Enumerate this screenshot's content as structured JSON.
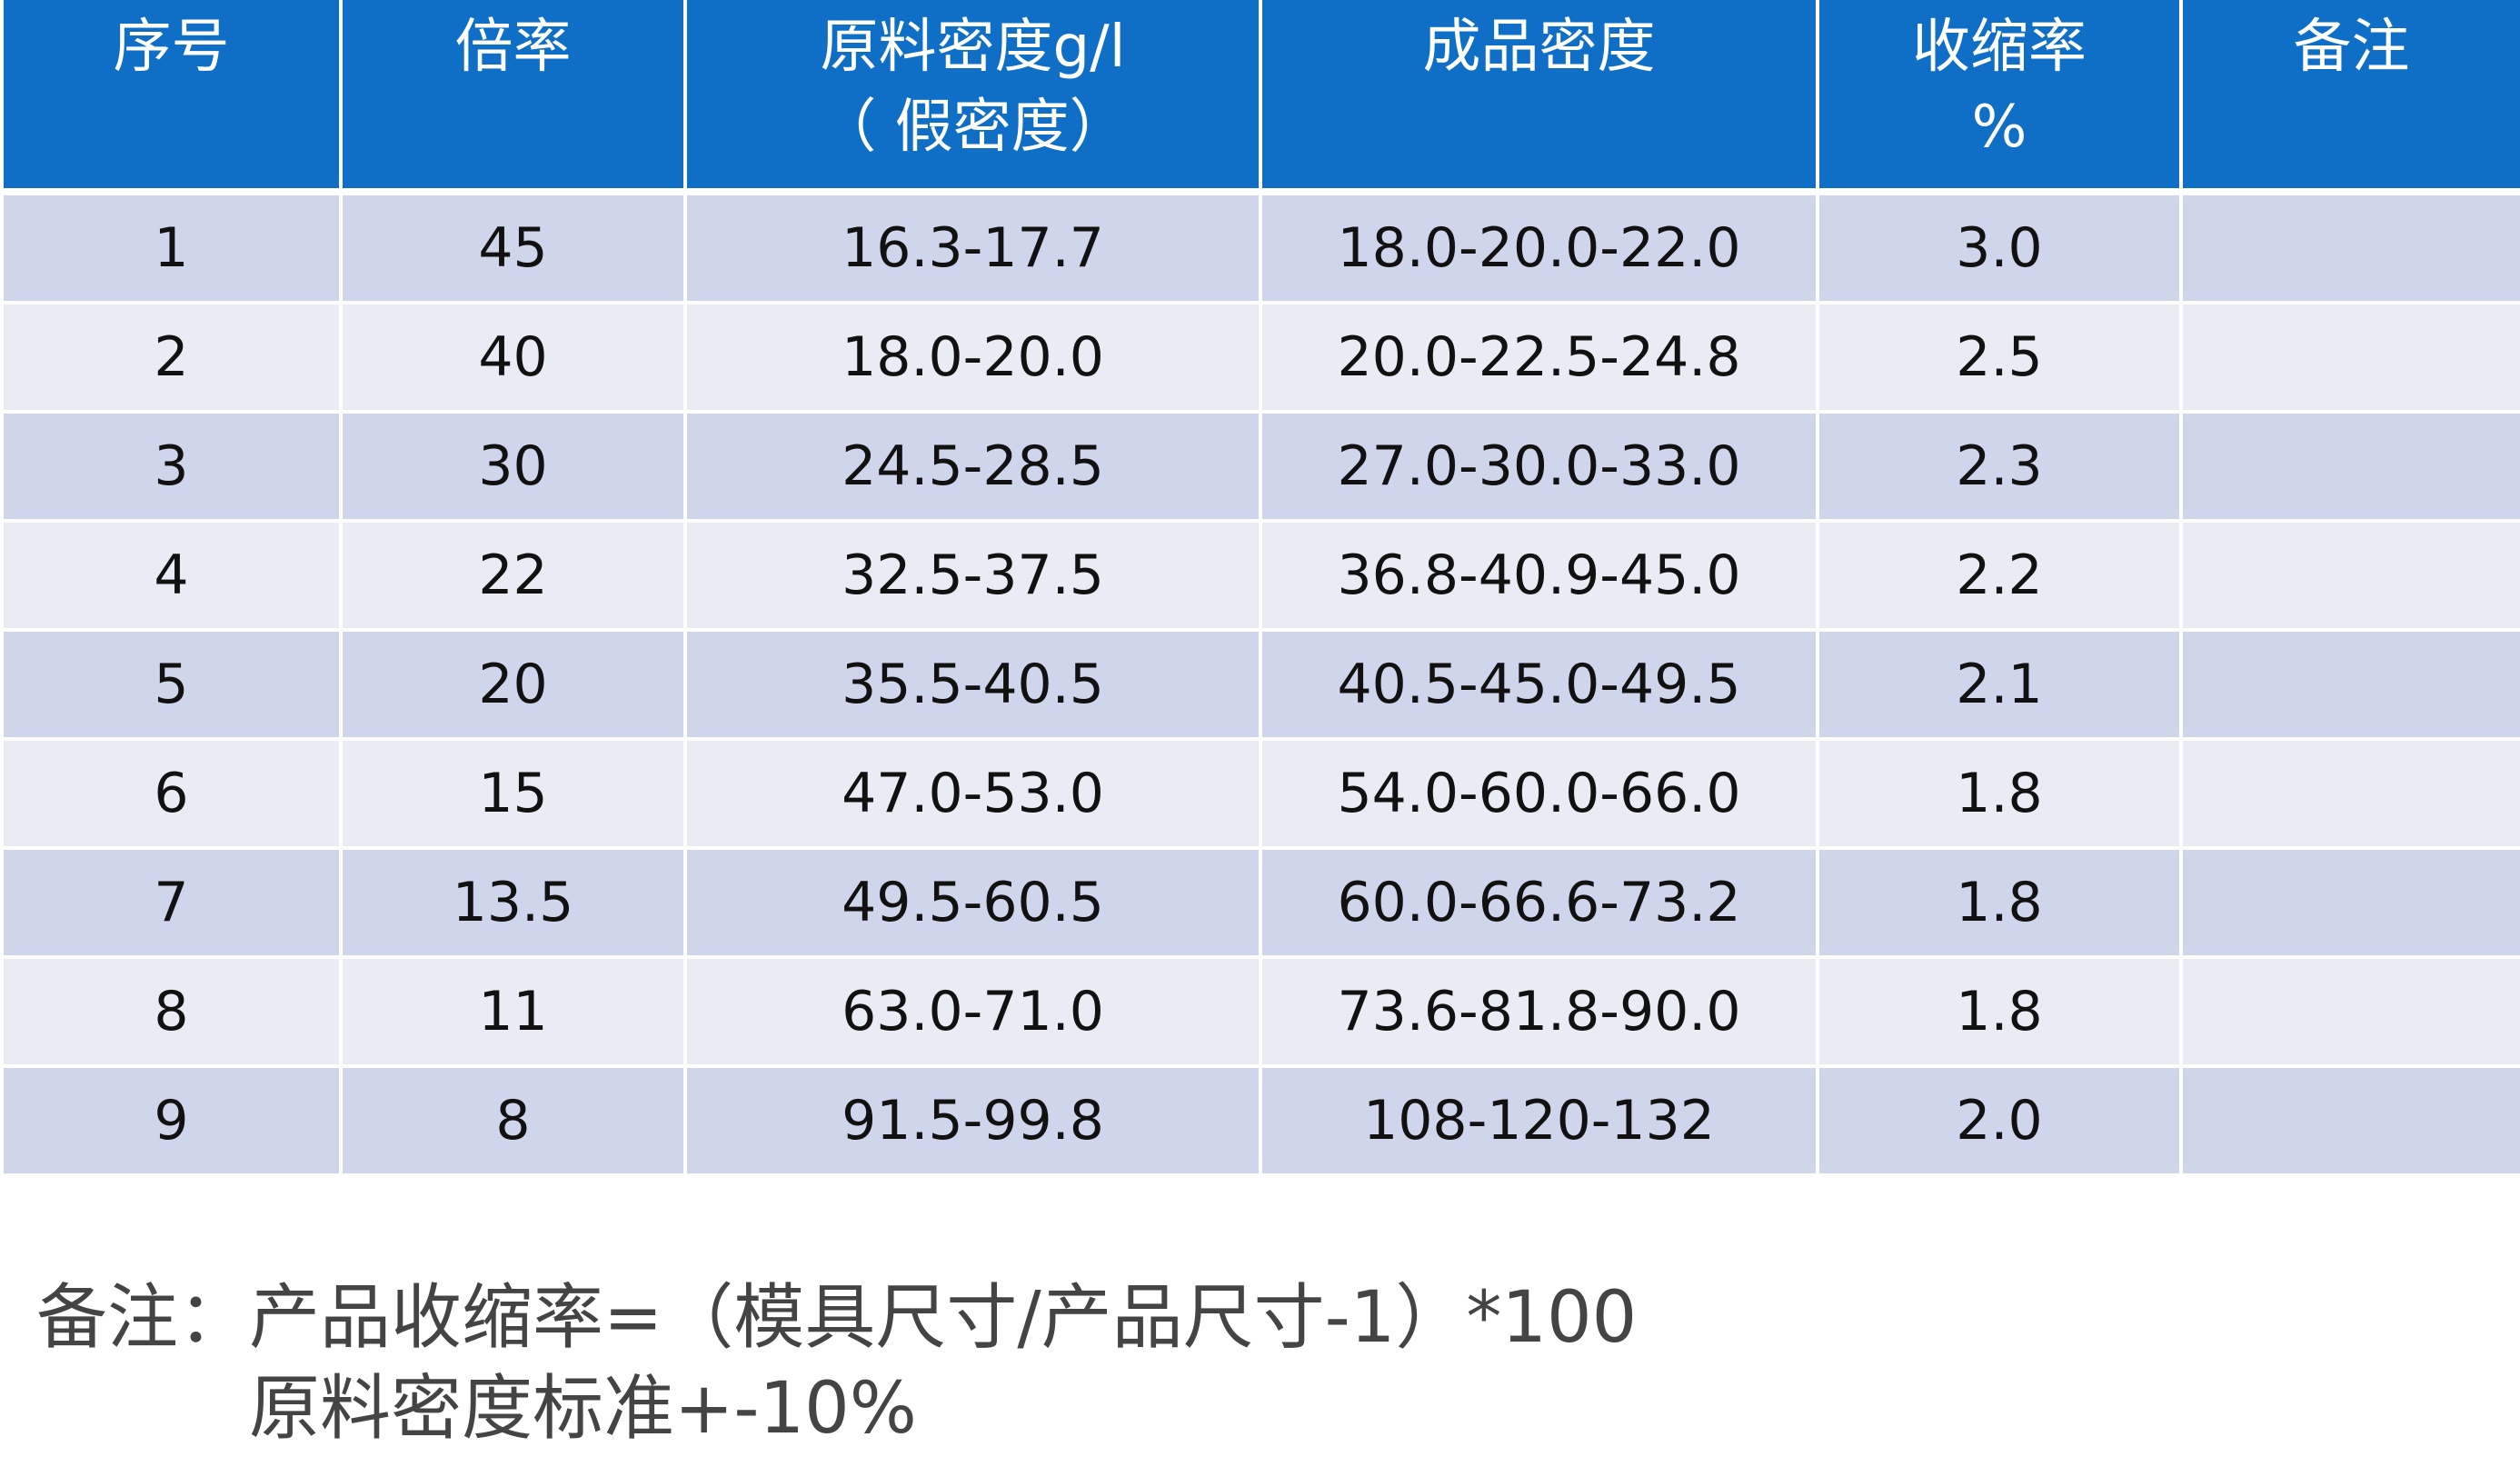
{
  "table": {
    "header": [
      [
        "序号"
      ],
      [
        "倍率"
      ],
      [
        "原料密度g/l",
        "（ 假密度）"
      ],
      [
        "成品密度"
      ],
      [
        "收缩率",
        "%"
      ],
      [
        "备注"
      ]
    ],
    "rows": [
      [
        "1",
        "45",
        "16.3-17.7",
        "18.0-20.0-22.0",
        "3.0"
      ],
      [
        "2",
        "40",
        "18.0-20.0",
        "20.0-22.5-24.8",
        "2.5"
      ],
      [
        "3",
        "30",
        "24.5-28.5",
        "27.0-30.0-33.0",
        "2.3"
      ],
      [
        "4",
        "22",
        "32.5-37.5",
        "36.8-40.9-45.0",
        "2.2"
      ],
      [
        "5",
        "20",
        "35.5-40.5",
        "40.5-45.0-49.5",
        "2.1"
      ],
      [
        "6",
        "15",
        "47.0-53.0",
        "54.0-60.0-66.0",
        "1.8"
      ],
      [
        "7",
        "13.5",
        "49.5-60.5",
        "60.0-66.6-73.2",
        "1.8"
      ],
      [
        "8",
        "11",
        "63.0-71.0",
        "73.6-81.8-90.0",
        "1.8"
      ],
      [
        "9",
        "8",
        "91.5-99.8",
        "108-120-132",
        "2.0"
      ]
    ]
  },
  "note": {
    "label": "备注：",
    "lines": [
      "产品收缩率=（模具尺寸/产品尺寸-1）*100",
      "原料密度标准+-10%"
    ]
  }
}
